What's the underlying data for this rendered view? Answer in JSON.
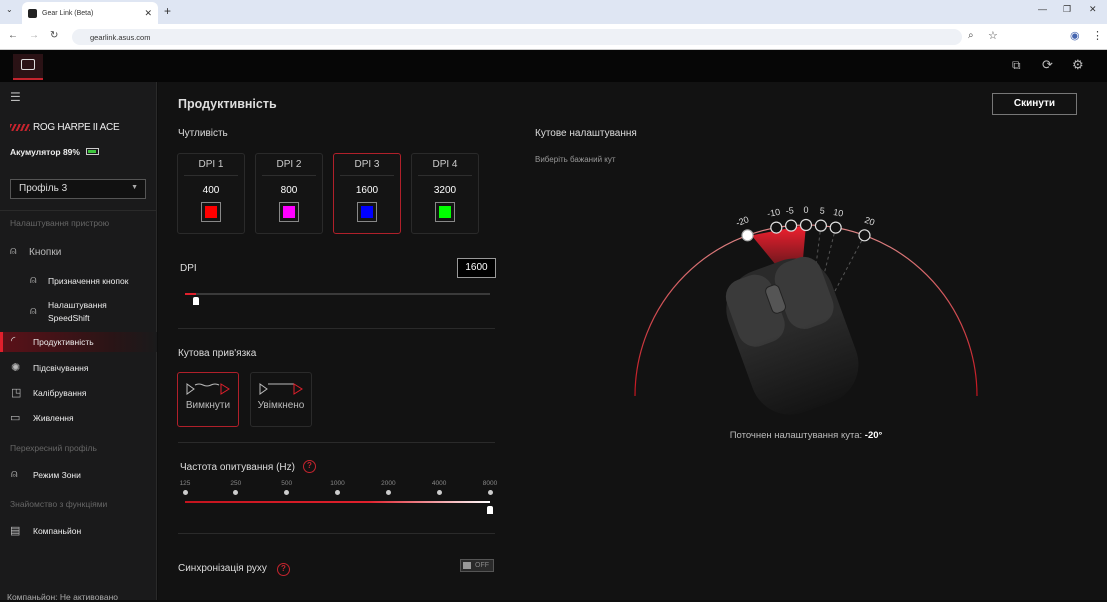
{
  "browser": {
    "tab_title": "Gear Link (Beta)",
    "url": "gearlink.asus.com"
  },
  "sidebar": {
    "device_name": "ROG HARPE II ACE",
    "battery": "Акумулятор 89%",
    "battery_level": 89,
    "profile": "Профіль 3",
    "section_device": "Налаштування пристрою",
    "items": [
      {
        "label": "Кнопки",
        "icon": "mouse-icon"
      },
      {
        "label": "Призначення кнопок",
        "icon": "mouse-icon"
      },
      {
        "label": "Налаштування SpeedShift",
        "icon": "mouse-icon"
      },
      {
        "label": "Продуктивність",
        "icon": "performance-icon",
        "active": true
      },
      {
        "label": "Підсвічування",
        "icon": "lighting-icon"
      },
      {
        "label": "Калібрування",
        "icon": "calibration-icon"
      },
      {
        "label": "Живлення",
        "icon": "battery-icon"
      }
    ],
    "section_cross": "Перехресний профіль",
    "zone": "Режим Зони",
    "section_features": "Знайомство з функціями",
    "companion": "Компаньйон",
    "footer": "Компаньйон: Не активовано"
  },
  "main": {
    "title": "Продуктивність",
    "reset": "Скинути",
    "sensitivity": "Чутливість",
    "dpi_presets": [
      {
        "label": "DPI 1",
        "value": "400",
        "color": "#ff0000"
      },
      {
        "label": "DPI 2",
        "value": "800",
        "color": "#ff00ff"
      },
      {
        "label": "DPI 3",
        "value": "1600",
        "color": "#0000ff",
        "selected": true
      },
      {
        "label": "DPI 4",
        "value": "3200",
        "color": "#00ff00"
      }
    ],
    "dpi_label": "DPI",
    "dpi_value": "1600",
    "dpi_min": 100,
    "dpi_max": 42000,
    "snapping_title": "Кутова прив'язка",
    "snap_off": "Вимкнути",
    "snap_on": "Увімкнено",
    "polling_title": "Частота опитування (Hz)",
    "polling_rates": [
      "125",
      "250",
      "500",
      "1000",
      "2000",
      "4000",
      "8000"
    ],
    "polling_selected": "8000",
    "motion_sync": "Синхронізація руху",
    "motion_sync_state": "OFF",
    "angle_title": "Кутове налаштування",
    "angle_hint": "Виберіть бажаний кут",
    "angle_ticks": [
      -20,
      -10,
      -5,
      0,
      5,
      10,
      20
    ],
    "angle_current_label": "Поточнен налаштування кута:",
    "angle_current": "-20°",
    "angle_value": -20,
    "accent": "#e0202c"
  }
}
